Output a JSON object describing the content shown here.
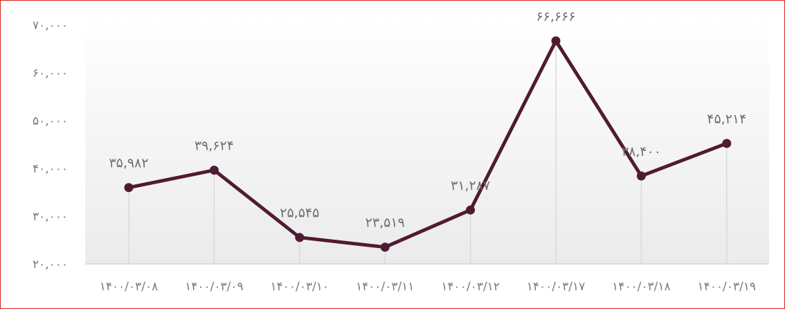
{
  "chart_data": {
    "type": "line",
    "categories": [
      "۱۴۰۰/۰۳/۰۸",
      "۱۴۰۰/۰۳/۰۹",
      "۱۴۰۰/۰۳/۱۰",
      "۱۴۰۰/۰۳/۱۱",
      "۱۴۰۰/۰۳/۱۲",
      "۱۴۰۰/۰۳/۱۷",
      "۱۴۰۰/۰۳/۱۸",
      "۱۴۰۰/۰۳/۱۹"
    ],
    "values": [
      35982,
      39624,
      25545,
      23519,
      31287,
      66666,
      38400,
      45214
    ],
    "data_labels": [
      "۳۵,۹۸۲",
      "۳۹,۶۲۴",
      "۲۵,۵۴۵",
      "۲۳,۵۱۹",
      "۳۱,۲۸۷",
      "۶۶,۶۶۶",
      "۳۸,۴۰۰",
      "۴۵,۲۱۴"
    ],
    "y_ticks": [
      20000,
      30000,
      40000,
      50000,
      60000,
      70000
    ],
    "y_tick_labels": [
      "۲۰,۰۰۰",
      "۳۰,۰۰۰",
      "۴۰,۰۰۰",
      "۵۰,۰۰۰",
      "۶۰,۰۰۰",
      "۷۰,۰۰۰"
    ],
    "ylim": [
      20000,
      70000
    ],
    "grid": false,
    "drop_lines": true,
    "legend": "none",
    "colors": {
      "line": "#511a33",
      "marker": "#511a33",
      "drop_line": "#d9d9d9",
      "axis": "#d0d0d0",
      "frame": "#d42020",
      "background_top": "#ffffff",
      "background_bottom": "#ebebeb"
    }
  }
}
